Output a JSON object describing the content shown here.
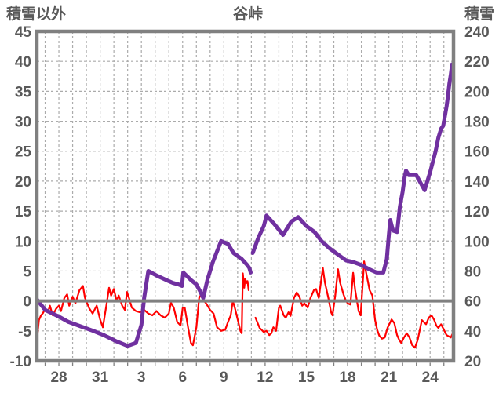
{
  "title": "谷峠",
  "colors": {
    "red_line": "#FF0000",
    "purple_line": "#7030A0",
    "axis_gray": "#808080",
    "grid_gray": "#ABABAB",
    "text_gray": "#595959",
    "background": "#FFFFFF"
  },
  "chart_data": {
    "type": "line",
    "title": "谷峠",
    "left_axis": {
      "label": "積雪以外",
      "min": -10,
      "max": 45,
      "tick_step": 5,
      "tick_labels": [
        "45",
        "40",
        "35",
        "30",
        "25",
        "20",
        "15",
        "10",
        "5",
        "0",
        "-5",
        "-10"
      ]
    },
    "right_axis": {
      "label": "積雪",
      "min": 20,
      "max": 240,
      "tick_step": 20,
      "tick_labels": [
        "240",
        "220",
        "200",
        "180",
        "160",
        "140",
        "120",
        "100",
        "80",
        "60",
        "40",
        "20"
      ]
    },
    "x_axis": {
      "note": "days: 0 = Dec 26; axis spans ~Dec 26.4 to ~Jan 25.7; daily dashed gridlines",
      "domain_days": [
        0.4,
        30.7
      ],
      "tick_days": [
        2,
        5,
        8,
        11,
        14,
        17,
        20,
        23,
        26,
        29
      ],
      "tick_labels": [
        "28",
        "31",
        "3",
        "6",
        "9",
        "12",
        "15",
        "18",
        "21",
        "24"
      ],
      "grid_interval_days": 1
    },
    "grid": true,
    "legend": "none",
    "zero_line": {
      "axis": "left",
      "value": 0,
      "style": "solid-gray"
    },
    "series": [
      {
        "name": "積雪以外",
        "axis": "left",
        "color": "#FF0000",
        "width": 2.2,
        "segments": [
          [
            [
              0.45,
              -5.5
            ],
            [
              0.55,
              -3.2
            ],
            [
              0.7,
              -2.4
            ],
            [
              0.85,
              -2.0
            ],
            [
              1.0,
              -1.3
            ],
            [
              1.2,
              -1.9
            ],
            [
              1.35,
              -0.8
            ],
            [
              1.55,
              -2.4
            ],
            [
              1.8,
              -1.3
            ],
            [
              2.0,
              -0.8
            ],
            [
              2.15,
              -1.7
            ],
            [
              2.4,
              0.5
            ],
            [
              2.6,
              1.1
            ],
            [
              2.75,
              -0.8
            ],
            [
              3.0,
              0.7
            ],
            [
              3.2,
              -0.4
            ],
            [
              3.5,
              1.8
            ],
            [
              3.75,
              2.5
            ],
            [
              3.9,
              0.5
            ],
            [
              4.2,
              -1.2
            ],
            [
              4.45,
              -2.1
            ],
            [
              4.75,
              -0.8
            ],
            [
              5.0,
              -3.1
            ],
            [
              5.2,
              -4.4
            ],
            [
              5.45,
              -0.8
            ],
            [
              5.65,
              2.2
            ],
            [
              5.8,
              0.9
            ],
            [
              6.0,
              2.0
            ],
            [
              6.2,
              0.0
            ],
            [
              6.35,
              0.9
            ],
            [
              6.6,
              -0.8
            ],
            [
              6.8,
              -1.5
            ],
            [
              6.95,
              1.5
            ],
            [
              7.1,
              0.5
            ],
            [
              7.3,
              -1.1
            ],
            [
              7.6,
              -1.7
            ],
            [
              7.9,
              -1.9
            ],
            [
              8.2,
              -1.5
            ],
            [
              8.5,
              -2.1
            ],
            [
              8.8,
              -2.4
            ],
            [
              9.1,
              -1.7
            ],
            [
              9.4,
              -2.4
            ],
            [
              9.7,
              -2.8
            ],
            [
              10.0,
              -2.1
            ],
            [
              10.15,
              -0.3
            ],
            [
              10.35,
              -1.1
            ],
            [
              10.6,
              -3.5
            ],
            [
              10.85,
              -4.1
            ],
            [
              11.0,
              -1.2
            ],
            [
              11.15,
              -1.1
            ],
            [
              11.4,
              -4.5
            ],
            [
              11.6,
              -7.0
            ],
            [
              11.75,
              -7.4
            ],
            [
              12.0,
              -4.4
            ],
            [
              12.2,
              0.5
            ],
            [
              12.35,
              1.1
            ],
            [
              12.5,
              0.2
            ],
            [
              12.7,
              -0.4
            ],
            [
              13.0,
              -1.5
            ],
            [
              13.25,
              -2.1
            ],
            [
              13.5,
              -4.4
            ],
            [
              13.8,
              -5.0
            ],
            [
              14.1,
              -4.8
            ],
            [
              14.3,
              -3.5
            ],
            [
              14.5,
              -2.4
            ],
            [
              14.65,
              0.0
            ],
            [
              14.8,
              -1.2
            ],
            [
              15.0,
              -3.1
            ],
            [
              15.2,
              -5.0
            ],
            [
              15.3,
              -5.4
            ],
            [
              15.38,
              4.6
            ],
            [
              15.48,
              2.2
            ],
            [
              15.55,
              3.7
            ],
            [
              15.65,
              3.0
            ],
            [
              15.72,
              3.3
            ],
            [
              15.8,
              1.8
            ]
          ],
          [
            [
              16.3,
              -2.8
            ],
            [
              16.6,
              -4.5
            ],
            [
              16.9,
              -5.2
            ],
            [
              17.1,
              -5.0
            ],
            [
              17.3,
              -5.7
            ],
            [
              17.45,
              -5.4
            ],
            [
              17.6,
              -4.4
            ],
            [
              17.8,
              -5.0
            ],
            [
              18.0,
              -1.2
            ],
            [
              18.1,
              -0.8
            ],
            [
              18.35,
              -2.4
            ],
            [
              18.5,
              -2.8
            ],
            [
              18.7,
              -1.9
            ],
            [
              18.85,
              -2.5
            ],
            [
              19.1,
              0.5
            ],
            [
              19.3,
              1.4
            ],
            [
              19.5,
              0.7
            ],
            [
              19.7,
              -0.8
            ],
            [
              19.85,
              -0.4
            ],
            [
              20.1,
              -1.1
            ],
            [
              20.3,
              0.5
            ],
            [
              20.55,
              1.8
            ],
            [
              20.7,
              2.0
            ],
            [
              20.9,
              0.5
            ],
            [
              21.2,
              5.5
            ],
            [
              21.35,
              3.1
            ],
            [
              21.6,
              0.5
            ],
            [
              21.8,
              -1.9
            ],
            [
              21.9,
              -2.4
            ],
            [
              22.1,
              0.9
            ],
            [
              22.3,
              5.3
            ],
            [
              22.45,
              3.1
            ],
            [
              22.7,
              1.1
            ],
            [
              22.85,
              0.2
            ],
            [
              23.0,
              -0.4
            ],
            [
              23.2,
              -0.6
            ],
            [
              23.4,
              4.7
            ],
            [
              23.55,
              1.8
            ],
            [
              23.8,
              -1.7
            ],
            [
              23.95,
              -2.4
            ],
            [
              24.2,
              6.6
            ],
            [
              24.35,
              4.7
            ],
            [
              24.6,
              1.8
            ],
            [
              24.8,
              0.9
            ],
            [
              25.0,
              -3.2
            ],
            [
              25.15,
              -4.8
            ],
            [
              25.3,
              -5.8
            ],
            [
              25.5,
              -6.3
            ],
            [
              25.7,
              -6.1
            ],
            [
              25.9,
              -4.5
            ],
            [
              26.2,
              -3.1
            ],
            [
              26.4,
              -3.7
            ],
            [
              26.6,
              -5.7
            ],
            [
              26.75,
              -6.5
            ],
            [
              26.9,
              -7.0
            ],
            [
              27.1,
              -6.1
            ],
            [
              27.3,
              -5.4
            ],
            [
              27.5,
              -6.1
            ],
            [
              27.7,
              -7.4
            ],
            [
              27.9,
              -7.8
            ],
            [
              28.1,
              -6.5
            ],
            [
              28.25,
              -4.8
            ],
            [
              28.4,
              -3.2
            ],
            [
              28.7,
              -3.9
            ],
            [
              28.9,
              -2.8
            ],
            [
              29.1,
              -2.4
            ],
            [
              29.3,
              -3.2
            ],
            [
              29.45,
              -4.1
            ],
            [
              29.6,
              -4.5
            ],
            [
              29.8,
              -3.9
            ],
            [
              30.0,
              -4.8
            ],
            [
              30.2,
              -5.7
            ],
            [
              30.35,
              -5.9
            ],
            [
              30.5,
              -6.1
            ],
            [
              30.65,
              -5.4
            ]
          ]
        ]
      },
      {
        "name": "積雪",
        "axis": "right",
        "color": "#7030A0",
        "width": 5,
        "segments": [
          [
            [
              0.4,
              61
            ],
            [
              1.0,
              54
            ],
            [
              1.9,
              50
            ],
            [
              2.7,
              46
            ],
            [
              3.6,
              43
            ],
            [
              4.5,
              40
            ],
            [
              5.3,
              37
            ],
            [
              6.2,
              33
            ],
            [
              7.0,
              30
            ],
            [
              7.6,
              32
            ],
            [
              8.0,
              44
            ],
            [
              8.2,
              62
            ],
            [
              8.5,
              80
            ],
            [
              9.1,
              77
            ],
            [
              9.8,
              74
            ],
            [
              10.3,
              72
            ],
            [
              10.7,
              71
            ],
            [
              10.95,
              70
            ],
            [
              11.05,
              79
            ],
            [
              11.6,
              74
            ],
            [
              12.0,
              71
            ],
            [
              12.3,
              66
            ],
            [
              12.5,
              62
            ],
            [
              12.8,
              74
            ],
            [
              13.2,
              86
            ],
            [
              13.8,
              100
            ],
            [
              14.3,
              98
            ],
            [
              14.7,
              92
            ],
            [
              15.3,
              88
            ],
            [
              15.7,
              84
            ],
            [
              15.85,
              82
            ],
            [
              15.95,
              79
            ]
          ],
          [
            [
              16.1,
              92
            ],
            [
              16.5,
              102
            ],
            [
              16.9,
              110
            ],
            [
              17.1,
              117
            ],
            [
              17.4,
              114
            ],
            [
              17.7,
              111
            ],
            [
              18.3,
              104
            ],
            [
              18.9,
              113
            ],
            [
              19.4,
              116
            ],
            [
              20.0,
              110
            ],
            [
              20.6,
              106
            ],
            [
              21.1,
              100
            ],
            [
              21.7,
              95
            ],
            [
              22.3,
              91
            ],
            [
              22.9,
              87
            ],
            [
              23.4,
              86
            ],
            [
              24.0,
              84
            ],
            [
              24.6,
              81
            ],
            [
              25.1,
              79
            ],
            [
              25.6,
              79
            ],
            [
              25.85,
              88
            ],
            [
              26.0,
              104
            ],
            [
              26.1,
              114
            ],
            [
              26.3,
              107
            ],
            [
              26.6,
              106
            ],
            [
              26.8,
              123
            ],
            [
              27.0,
              133
            ],
            [
              27.15,
              143
            ],
            [
              27.25,
              147
            ],
            [
              27.45,
              144
            ],
            [
              28.0,
              144
            ],
            [
              28.3,
              139
            ],
            [
              28.6,
              134
            ],
            [
              29.0,
              146
            ],
            [
              29.2,
              153
            ],
            [
              29.4,
              160
            ],
            [
              29.6,
              169
            ],
            [
              29.8,
              175
            ],
            [
              29.95,
              177
            ],
            [
              30.05,
              182
            ],
            [
              30.2,
              190
            ],
            [
              30.3,
              197
            ],
            [
              30.4,
              205
            ],
            [
              30.5,
              211
            ],
            [
              30.6,
              218
            ],
            [
              30.7,
              214
            ]
          ]
        ]
      }
    ]
  }
}
